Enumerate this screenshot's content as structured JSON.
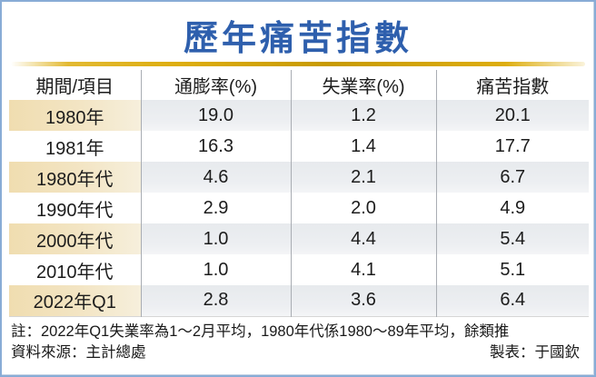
{
  "title": "歷年痛苦指數",
  "table": {
    "headers": [
      "期間/項目",
      "通膨率(%)",
      "失業率(%)",
      "痛苦指數"
    ],
    "rows": [
      {
        "period": "1980年",
        "inflation": "19.0",
        "unemployment": "1.2",
        "misery": "20.1"
      },
      {
        "period": "1981年",
        "inflation": "16.3",
        "unemployment": "1.4",
        "misery": "17.7"
      },
      {
        "period": "1980年代",
        "inflation": "4.6",
        "unemployment": "2.1",
        "misery": "6.7"
      },
      {
        "period": "1990年代",
        "inflation": "2.9",
        "unemployment": "2.0",
        "misery": "4.9"
      },
      {
        "period": "2000年代",
        "inflation": "1.0",
        "unemployment": "4.4",
        "misery": "5.4"
      },
      {
        "period": "2010年代",
        "inflation": "1.0",
        "unemployment": "4.1",
        "misery": "5.1"
      },
      {
        "period": "2022年Q1",
        "inflation": "2.8",
        "unemployment": "3.6",
        "misery": "6.4"
      }
    ]
  },
  "notes": {
    "footnote": "註：2022年Q1失業率為1～2月平均，1980年代係1980～89年平均，餘類推",
    "source": "資料來源：主計總處",
    "credit": "製表：于國欽"
  },
  "colors": {
    "title_blue": "#2e5fad",
    "gold": "#ddad0e",
    "row_shade": "#e9ecef",
    "beige_left": "#f0ddb0",
    "beige_right": "#f6efdc",
    "frame_blue": "#88acd6",
    "divider": "#a9adb3",
    "text_dark": "#1c1c1c"
  },
  "chart_data": {
    "type": "table",
    "title": "歷年痛苦指數",
    "columns": [
      "期間/項目",
      "通膨率(%)",
      "失業率(%)",
      "痛苦指數"
    ],
    "rows": [
      [
        "1980年",
        19.0,
        1.2,
        20.1
      ],
      [
        "1981年",
        16.3,
        1.4,
        17.7
      ],
      [
        "1980年代",
        4.6,
        2.1,
        6.7
      ],
      [
        "1990年代",
        2.9,
        2.0,
        4.9
      ],
      [
        "2000年代",
        1.0,
        4.4,
        5.4
      ],
      [
        "2010年代",
        1.0,
        4.1,
        5.1
      ],
      [
        "2022年Q1",
        2.8,
        3.6,
        6.4
      ]
    ],
    "note": "註：2022年Q1失業率為1～2月平均，1980年代係1980～89年平均，餘類推",
    "source": "資料來源：主計總處",
    "credit": "製表：于國欽"
  }
}
